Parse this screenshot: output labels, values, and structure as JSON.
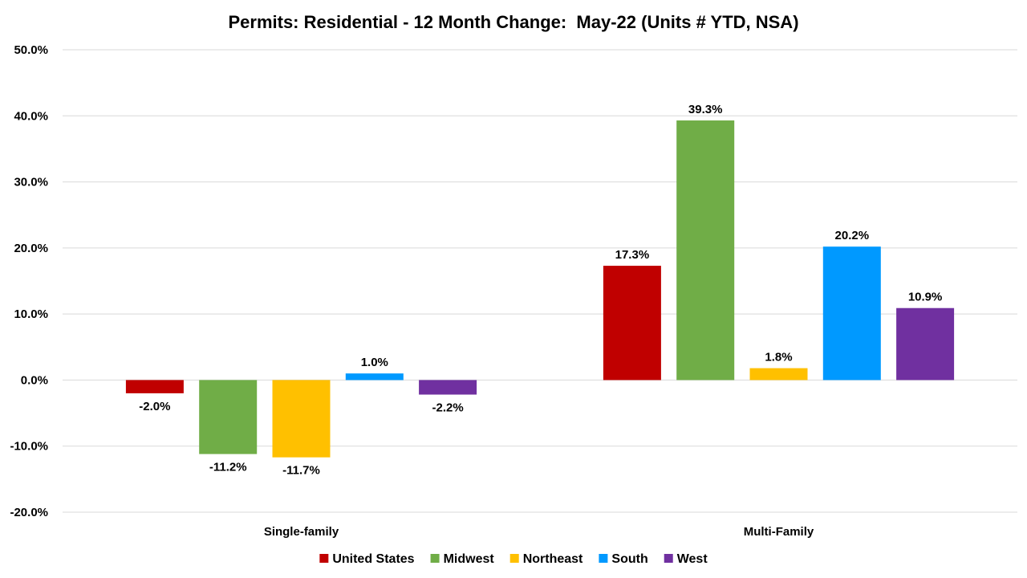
{
  "chart_data": {
    "type": "bar",
    "title": "Permits: Residential - 12 Month Change:  May-22 (Units # YTD, NSA)",
    "xlabel": "",
    "ylabel": "",
    "ylim": [
      -20,
      50
    ],
    "yticks": [
      -20,
      -10,
      0,
      10,
      20,
      30,
      40,
      50
    ],
    "ytick_labels": [
      "-20.0%",
      "-10.0%",
      "0.0%",
      "10.0%",
      "20.0%",
      "30.0%",
      "40.0%",
      "50.0%"
    ],
    "categories": [
      "Single-family",
      "Multi-Family"
    ],
    "grid": true,
    "legend_position": "bottom",
    "series": [
      {
        "name": "United States",
        "color": "#C00000",
        "values": [
          -2.0,
          17.3
        ],
        "labels": [
          "-2.0%",
          "17.3%"
        ]
      },
      {
        "name": "Midwest",
        "color": "#70AD47",
        "values": [
          -11.2,
          39.3
        ],
        "labels": [
          "-11.2%",
          "39.3%"
        ]
      },
      {
        "name": "Northeast",
        "color": "#FFC000",
        "values": [
          -11.7,
          1.8
        ],
        "labels": [
          "-11.7%",
          "1.8%"
        ]
      },
      {
        "name": "South",
        "color": "#0099FF",
        "values": [
          1.0,
          20.2
        ],
        "labels": [
          "1.0%",
          "20.2%"
        ]
      },
      {
        "name": "West",
        "color": "#7030A0",
        "values": [
          -2.2,
          10.9
        ],
        "labels": [
          "-2.2%",
          "10.9%"
        ]
      }
    ]
  }
}
